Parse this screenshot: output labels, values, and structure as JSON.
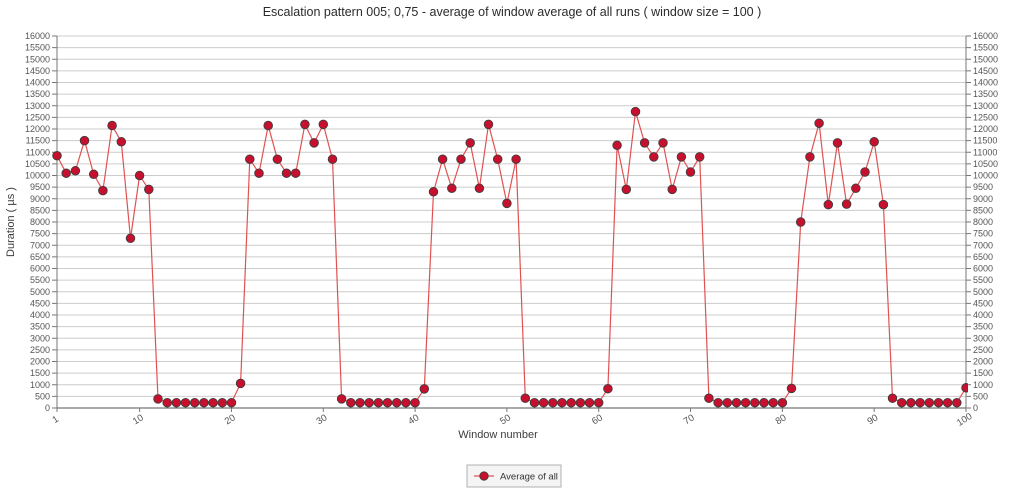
{
  "title": "Escalation pattern 005; 0,75 - average of window average of all runs ( window size = 100 )",
  "legend": {
    "label": "Average of all"
  },
  "colors": {
    "marker_fill": "#c8102e",
    "marker_stroke": "#3d3d3d",
    "line": "#e05252",
    "gridline": "#cccccc",
    "axis": "#777777"
  },
  "chart_data": {
    "type": "line",
    "title": "Escalation pattern 005; 0,75 - average of window average of all runs ( window size = 100 )",
    "xlabel": "Window number",
    "ylabel": "Duration ( µs )",
    "x_range": [
      1,
      100
    ],
    "x_ticks": [
      1,
      10,
      20,
      30,
      40,
      50,
      60,
      70,
      80,
      90,
      100
    ],
    "ylim": [
      0,
      16000
    ],
    "y_tick_step": 500,
    "grid": true,
    "legend_position": "bottom",
    "series": [
      {
        "name": "Average of all",
        "color": "#c8102e",
        "values": [
          10850,
          10100,
          10200,
          11500,
          10050,
          9350,
          12150,
          11450,
          7300,
          10000,
          9400,
          390,
          230,
          230,
          230,
          230,
          230,
          230,
          230,
          230,
          1060,
          10700,
          10100,
          12150,
          10700,
          10100,
          10100,
          12200,
          11400,
          12200,
          10700,
          390,
          230,
          230,
          230,
          230,
          230,
          230,
          230,
          230,
          820,
          9300,
          10700,
          9450,
          10700,
          11400,
          9450,
          12200,
          10700,
          8800,
          10700,
          420,
          230,
          230,
          230,
          230,
          230,
          230,
          230,
          230,
          830,
          11300,
          9400,
          12750,
          11400,
          10800,
          11400,
          9400,
          10800,
          10150,
          10800,
          420,
          230,
          230,
          230,
          230,
          230,
          230,
          230,
          230,
          845,
          8000,
          10800,
          12250,
          8750,
          11400,
          8770,
          9450,
          10150,
          11450,
          8750,
          420,
          230,
          230,
          230,
          230,
          230,
          230,
          230,
          870
        ]
      }
    ]
  }
}
